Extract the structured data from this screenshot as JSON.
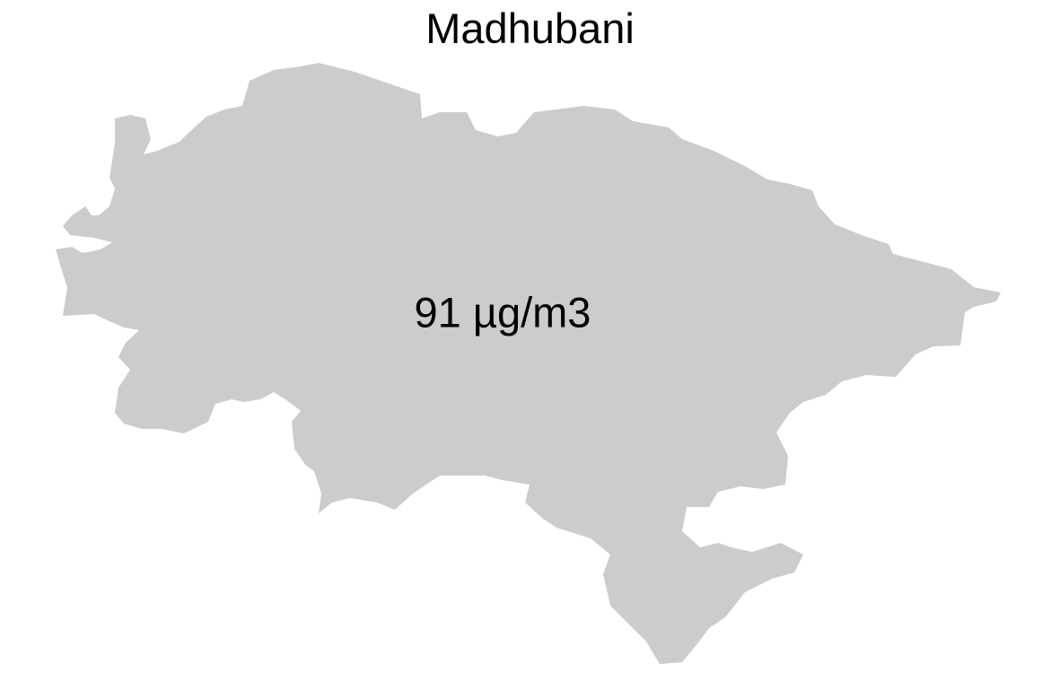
{
  "map": {
    "title": "Madhubani",
    "value_label": "91 µg/m3",
    "region_fill": "#cccccc",
    "text_color": "#000000",
    "background": "#ffffff"
  }
}
